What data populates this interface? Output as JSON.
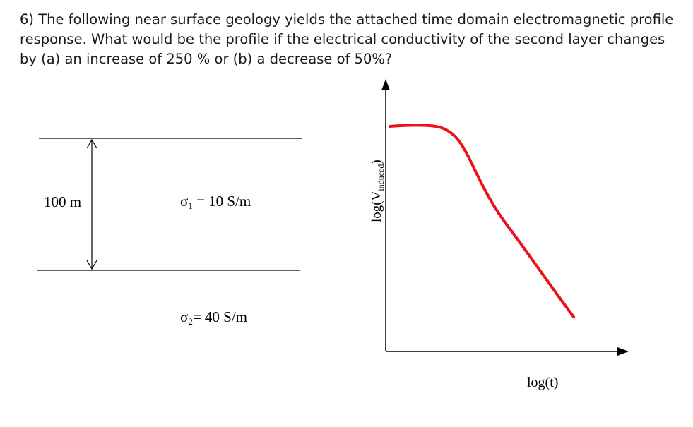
{
  "question": {
    "text": "6) The following near surface geology yields the attached time domain electromagnetic profile response. What would be the profile if the electrical conductivity of the second layer changes by (a) an increase of 250 % or (b) a decrease of 50%?"
  },
  "geology": {
    "thickness_label": "100 m",
    "layer1": {
      "symbol": "σ",
      "subscript": "1",
      "value_text": " = 10 S/m"
    },
    "layer2": {
      "symbol": "σ",
      "subscript": "2",
      "value_text": "= 40 S/m"
    }
  },
  "tem_profile": {
    "y_axis_label_prefix": "log(V",
    "y_axis_label_subscript": "induced",
    "y_axis_label_suffix": ")",
    "x_axis_label": "log(t)",
    "curve_color": "#e8141a"
  }
}
